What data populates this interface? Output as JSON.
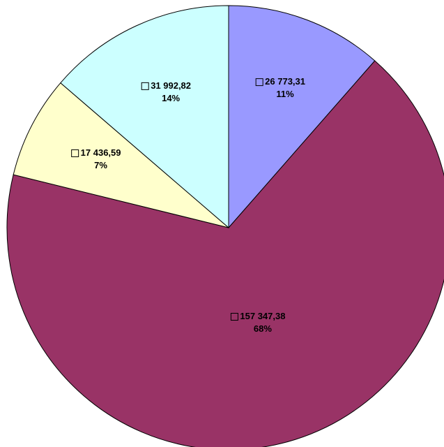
{
  "chart_data": {
    "type": "pie",
    "values": [
      26773.31,
      157347.38,
      17436.59,
      31992.82
    ],
    "value_labels": [
      "26 773,31",
      "157 347,38",
      "17 436,59",
      "31 992,82"
    ],
    "percent_labels": [
      "11%",
      "68%",
      "7%",
      "14%"
    ],
    "colors": [
      "#9999ff",
      "#993366",
      "#ffffcc",
      "#ccffff"
    ]
  }
}
